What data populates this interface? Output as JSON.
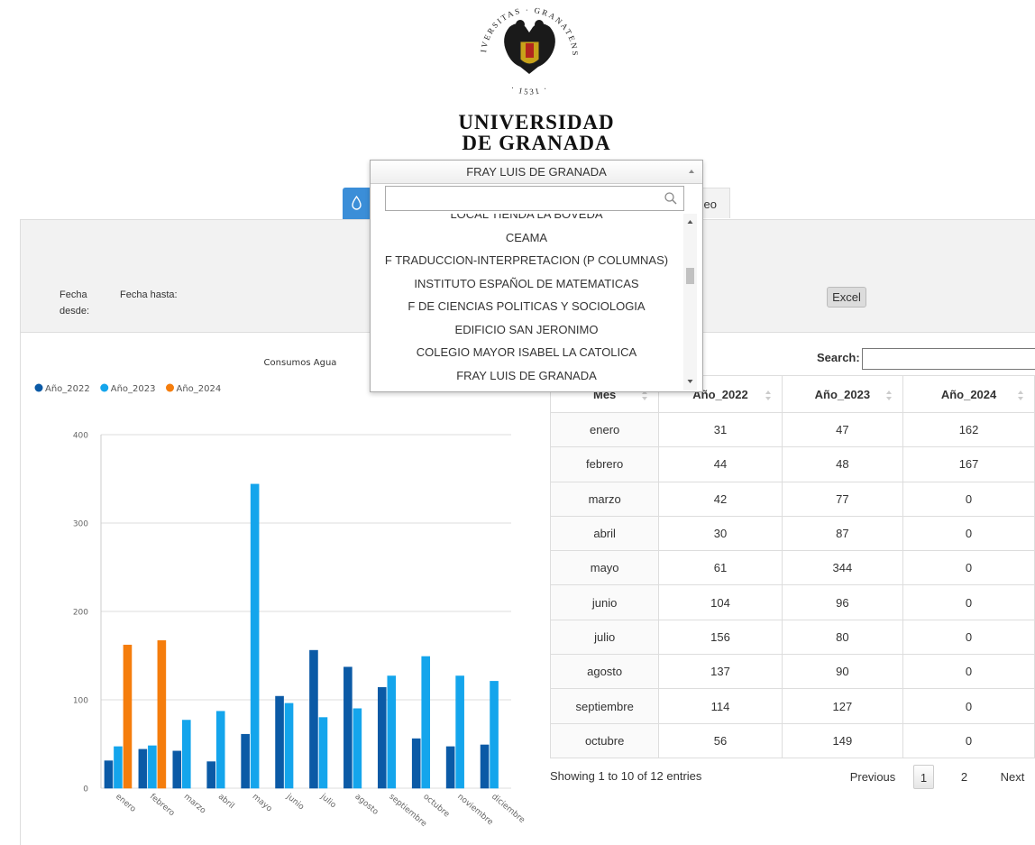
{
  "header": {
    "seal_text": "VNIVERSITAS · GRANATENSIS",
    "seal_year": "· 1531 ·",
    "name_line1": "UNIVERSIDAD",
    "name_line2": "DE GRANADA"
  },
  "dropdown": {
    "selected": "FRAY LUIS DE GRANADA",
    "options": [
      "LOCAL TIENDA LA BOVEDA",
      "CEAMA",
      "F TRADUCCION-INTERPRETACION (P COLUMNAS)",
      "INSTITUTO ESPAÑOL DE MATEMATICAS",
      "F DE CIENCIAS POLITICAS Y SOCIOLOGIA",
      "EDIFICIO SAN JERONIMO",
      "COLEGIO MAYOR ISABEL LA CATOLICA",
      "FRAY LUIS DE GRANADA"
    ]
  },
  "tabs": {
    "other": "deo"
  },
  "filters": {
    "from": "Fecha desde:",
    "to": "Fecha hasta:",
    "export": "Excel"
  },
  "chart_data": {
    "type": "bar",
    "title": "Consumos Agua",
    "categories": [
      "enero",
      "febrero",
      "marzo",
      "abril",
      "mayo",
      "junio",
      "julio",
      "agosto",
      "septiembre",
      "octubre",
      "noviembre",
      "diciembre"
    ],
    "series": [
      {
        "name": "Año_2022",
        "color": "#0b5aa6",
        "values": [
          31,
          44,
          42,
          30,
          61,
          104,
          156,
          137,
          114,
          56,
          47,
          49
        ]
      },
      {
        "name": "Año_2023",
        "color": "#14a5ec",
        "values": [
          47,
          48,
          77,
          87,
          344,
          96,
          80,
          90,
          127,
          149,
          127,
          121
        ]
      },
      {
        "name": "Año_2024",
        "color": "#f57d0c",
        "values": [
          162,
          167,
          0,
          0,
          0,
          0,
          0,
          0,
          0,
          0,
          0,
          0
        ]
      }
    ],
    "ylim": [
      0,
      400
    ],
    "yticks": [
      0,
      100,
      200,
      300,
      400
    ],
    "grid": true,
    "legend": "top-left"
  },
  "table": {
    "search": "Search:",
    "columns": [
      "Mes",
      "Año_2022",
      "Año_2023",
      "Año_2024"
    ],
    "rows": [
      [
        "enero",
        "31",
        "47",
        "162"
      ],
      [
        "febrero",
        "44",
        "48",
        "167"
      ],
      [
        "marzo",
        "42",
        "77",
        "0"
      ],
      [
        "abril",
        "30",
        "87",
        "0"
      ],
      [
        "mayo",
        "61",
        "344",
        "0"
      ],
      [
        "junio",
        "104",
        "96",
        "0"
      ],
      [
        "julio",
        "156",
        "80",
        "0"
      ],
      [
        "agosto",
        "137",
        "90",
        "0"
      ],
      [
        "septiembre",
        "114",
        "127",
        "0"
      ],
      [
        "octubre",
        "56",
        "149",
        "0"
      ]
    ],
    "info": "Showing 1 to 10 of 12 entries",
    "pagination": [
      "Previous",
      "1",
      "2",
      "Next"
    ]
  }
}
